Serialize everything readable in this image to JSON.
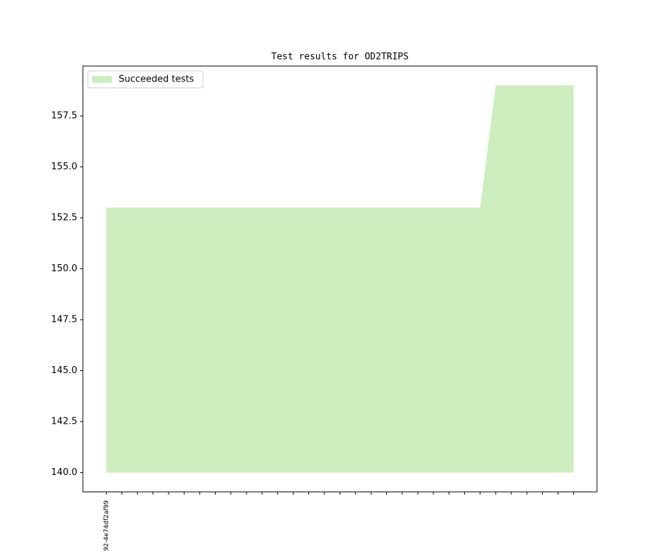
{
  "chart_data": {
    "type": "area",
    "title": "Test results for OD2TRIPS",
    "categories": [
      "92-4e74df2af99",
      null,
      null,
      null,
      null,
      null,
      null,
      null,
      null,
      null,
      null,
      null,
      null,
      null,
      null,
      null,
      null,
      null,
      null,
      null,
      null,
      null,
      null,
      null,
      null,
      null,
      null,
      null,
      null,
      null,
      null
    ],
    "series": [
      {
        "name": "Succeeded tests",
        "color": "#cdedbf",
        "values": [
          153,
          153,
          153,
          153,
          153,
          153,
          153,
          153,
          153,
          153,
          153,
          153,
          153,
          153,
          153,
          153,
          153,
          153,
          153,
          153,
          153,
          153,
          153,
          153,
          153,
          159,
          159,
          159,
          159,
          159,
          159
        ]
      }
    ],
    "baseline": 140,
    "xlim": [
      -1.5,
      31.5
    ],
    "ylim": [
      139.05,
      159.95
    ],
    "yticks": [
      {
        "value": 140,
        "label": "140.0"
      },
      {
        "value": 142.5,
        "label": "142.5"
      },
      {
        "value": 145,
        "label": "145.0"
      },
      {
        "value": 147.5,
        "label": "147.5"
      },
      {
        "value": 150,
        "label": "150.0"
      },
      {
        "value": 152.5,
        "label": "152.5"
      },
      {
        "value": 155,
        "label": "155.0"
      },
      {
        "value": 157.5,
        "label": "157.5"
      }
    ],
    "legend": "upper left",
    "grid": false
  }
}
